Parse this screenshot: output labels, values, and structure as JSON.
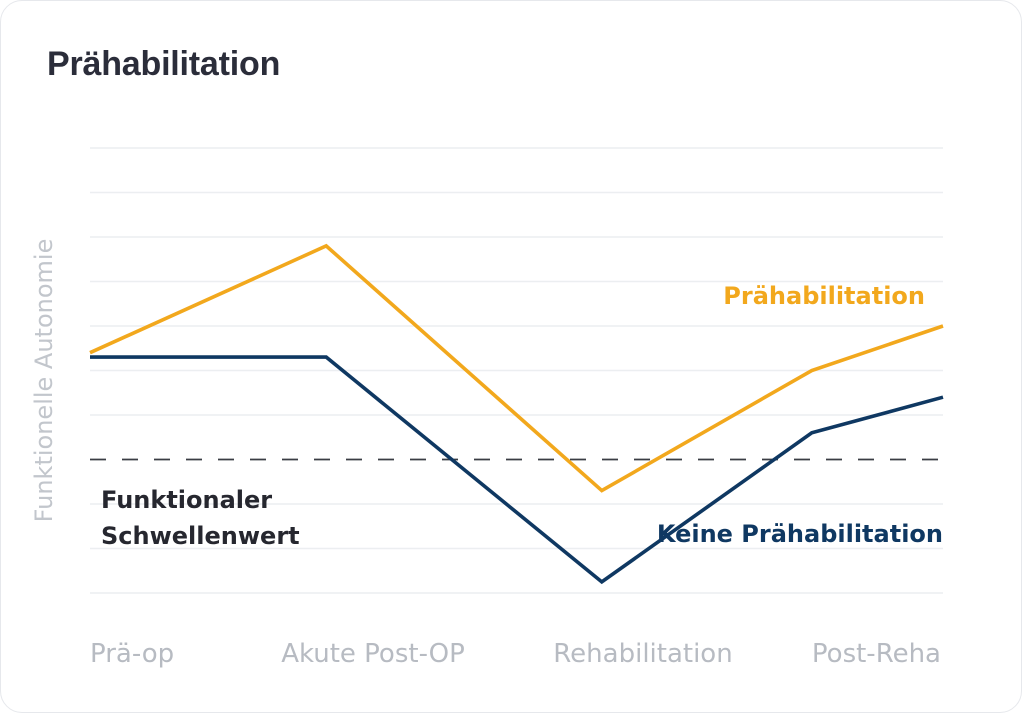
{
  "chart_data": {
    "type": "line",
    "title": "Prähabilitation",
    "xlabel": "",
    "ylabel": "Funktionelle Autonomie",
    "categories": [
      "Prä-op",
      "Akute Post-OP",
      "Rehabilitation",
      "Post-Reha"
    ],
    "ylim": [
      0,
      10
    ],
    "grid": true,
    "y_ticks_labeled": false,
    "x": [
      0,
      0.9,
      1.95,
      2.75,
      3.25
    ],
    "series": [
      {
        "name": "Prähabilitation",
        "color": "#f2a81d",
        "values": [
          5.4,
          7.8,
          2.3,
          5.0,
          6.0
        ]
      },
      {
        "name": "Keine Prähabilitation",
        "color": "#0f3862",
        "values": [
          5.3,
          5.3,
          0.25,
          3.6,
          4.4
        ]
      }
    ],
    "threshold": {
      "label": "Funktionaler Schwellenwert",
      "label_lines": [
        "Funktionaler",
        "Schwellenwert"
      ],
      "value": 3.0,
      "color": "#3a3d44",
      "style": "dashed"
    }
  }
}
